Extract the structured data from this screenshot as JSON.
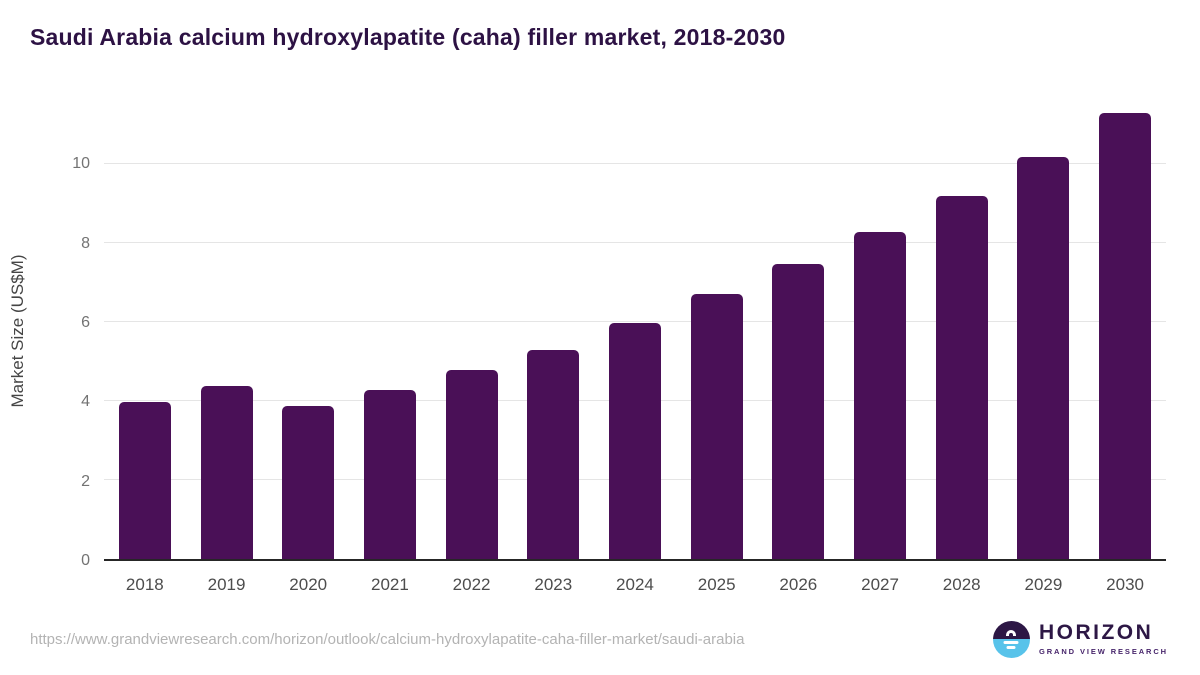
{
  "header": {
    "title": "Saudi Arabia calcium hydroxylapatite (caha) filler market, 2018-2030",
    "title_color": "#2d1244"
  },
  "chart_data": {
    "type": "bar",
    "title": "Saudi Arabia calcium hydroxylapatite (caha) filler market, 2018-2030",
    "categories": [
      "2018",
      "2019",
      "2020",
      "2021",
      "2022",
      "2023",
      "2024",
      "2025",
      "2026",
      "2027",
      "2028",
      "2029",
      "2030"
    ],
    "values": [
      3.98,
      4.38,
      3.88,
      4.28,
      4.78,
      5.28,
      5.98,
      6.7,
      7.48,
      8.28,
      9.18,
      10.18,
      11.28
    ],
    "xlabel": "",
    "ylabel": "Market Size (US$M)",
    "ylim": [
      0,
      11.62
    ],
    "yticks": [
      0,
      2,
      4,
      6,
      8,
      10
    ],
    "grid": "horizontal",
    "legend_position": "none",
    "bar_color": "#4a1057",
    "gridline_color": "#e5e5e5",
    "axis_line_color": "#262626"
  },
  "footer": {
    "source_url": "https://www.grandviewresearch.com/horizon/outlook/calcium-hydroxylapatite-caha-filler-market/saudi-arabia",
    "logo": {
      "name": "HORIZON",
      "subtitle": "GRAND VIEW RESEARCH",
      "purple": "#2d1745",
      "blue": "#58c3ea"
    }
  }
}
